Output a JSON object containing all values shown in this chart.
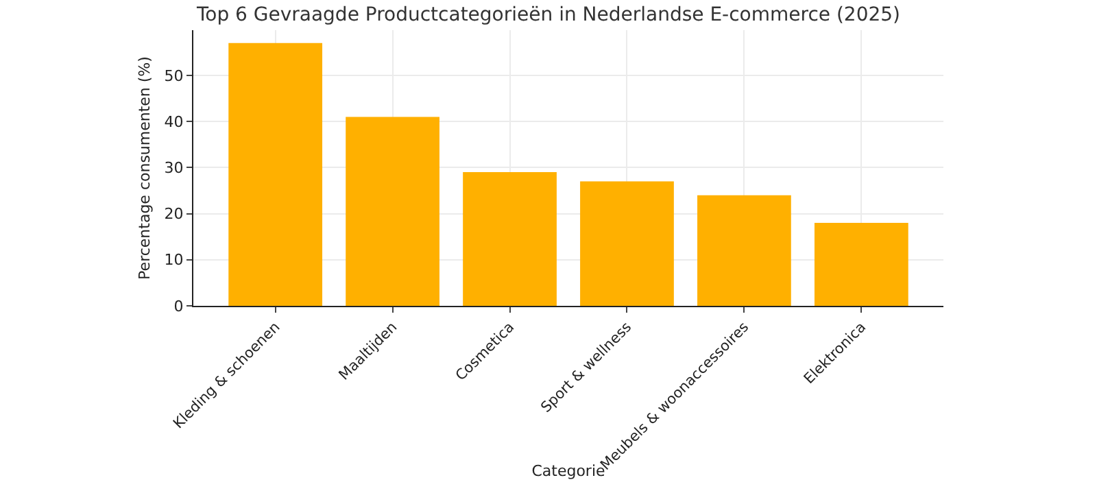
{
  "chart_data": {
    "type": "bar",
    "title": "Top 6 Gevraagde Productcategorieën in Nederlandse E-commerce (2025)",
    "xlabel": "Categorie",
    "ylabel": "Percentage consumenten (%)",
    "categories": [
      "Kleding & schoenen",
      "Maaltijden",
      "Cosmetica",
      "Sport & wellness",
      "Meubels & woonaccessoires",
      "Elektronica"
    ],
    "values": [
      57,
      41,
      29,
      27,
      24,
      18
    ],
    "color": "#ffb000",
    "ylim": [
      0,
      59.8
    ],
    "yticks": [
      0,
      10,
      20,
      30,
      40,
      50
    ],
    "grid": true
  }
}
